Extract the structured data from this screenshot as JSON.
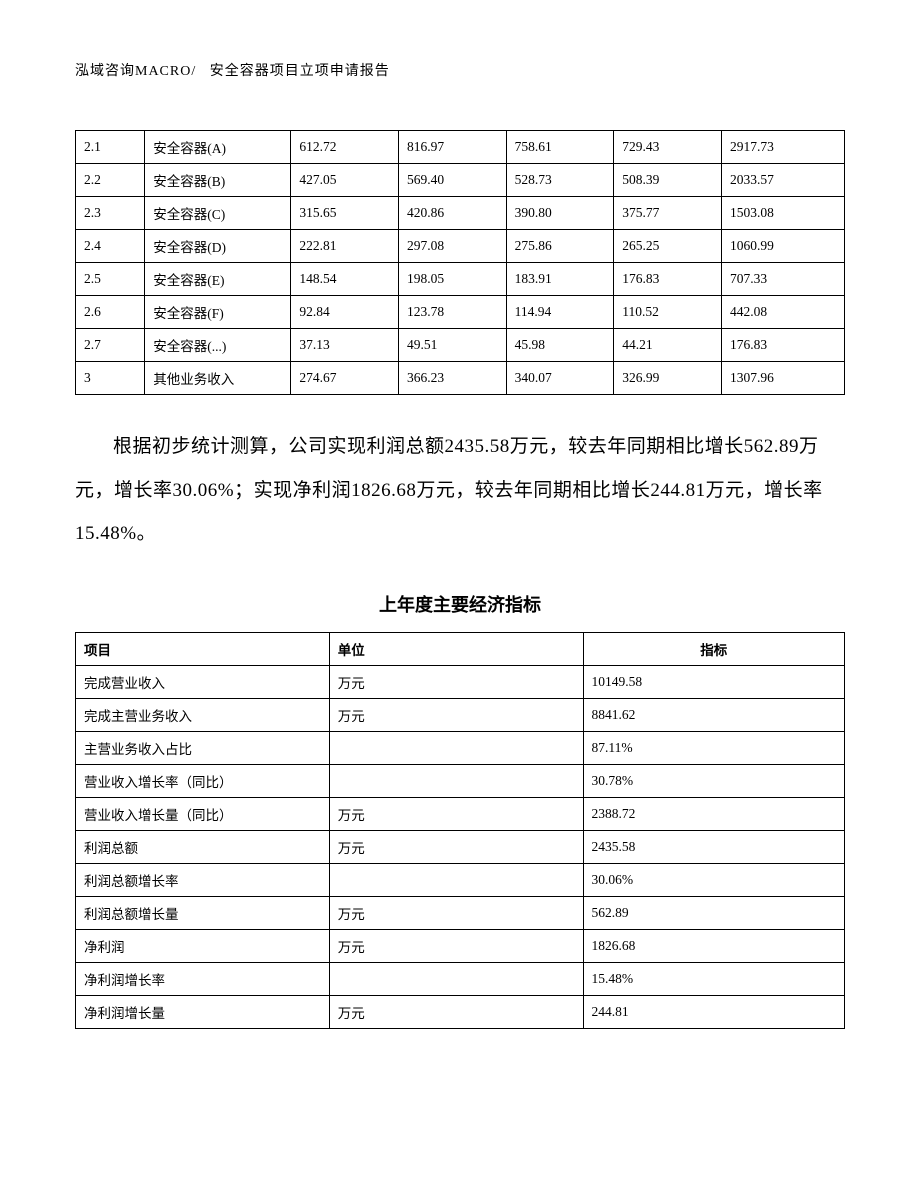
{
  "header": {
    "company": "泓域咨询MACRO/",
    "title": "安全容器项目立项申请报告"
  },
  "table1": {
    "rows": [
      [
        "2.1",
        "安全容器(A)",
        "612.72",
        "816.97",
        "758.61",
        "729.43",
        "2917.73"
      ],
      [
        "2.2",
        "安全容器(B)",
        "427.05",
        "569.40",
        "528.73",
        "508.39",
        "2033.57"
      ],
      [
        "2.3",
        "安全容器(C)",
        "315.65",
        "420.86",
        "390.80",
        "375.77",
        "1503.08"
      ],
      [
        "2.4",
        "安全容器(D)",
        "222.81",
        "297.08",
        "275.86",
        "265.25",
        "1060.99"
      ],
      [
        "2.5",
        "安全容器(E)",
        "148.54",
        "198.05",
        "183.91",
        "176.83",
        "707.33"
      ],
      [
        "2.6",
        "安全容器(F)",
        "92.84",
        "123.78",
        "114.94",
        "110.52",
        "442.08"
      ],
      [
        "2.7",
        "安全容器(...)",
        "37.13",
        "49.51",
        "45.98",
        "44.21",
        "176.83"
      ],
      [
        "3",
        "其他业务收入",
        "274.67",
        "366.23",
        "340.07",
        "326.99",
        "1307.96"
      ]
    ]
  },
  "paragraph": "根据初步统计测算，公司实现利润总额2435.58万元，较去年同期相比增长562.89万元，增长率30.06%；实现净利润1826.68万元，较去年同期相比增长244.81万元，增长率15.48%。",
  "table2_title": "上年度主要经济指标",
  "table2": {
    "headers": [
      "项目",
      "单位",
      "指标"
    ],
    "rows": [
      [
        "完成营业收入",
        "万元",
        "10149.58"
      ],
      [
        "完成主营业务收入",
        "万元",
        "8841.62"
      ],
      [
        "主营业务收入占比",
        "",
        "87.11%"
      ],
      [
        "营业收入增长率（同比）",
        "",
        "30.78%"
      ],
      [
        "营业收入增长量（同比）",
        "万元",
        "2388.72"
      ],
      [
        "利润总额",
        "万元",
        "2435.58"
      ],
      [
        "利润总额增长率",
        "",
        "30.06%"
      ],
      [
        "利润总额增长量",
        "万元",
        "562.89"
      ],
      [
        "净利润",
        "万元",
        "1826.68"
      ],
      [
        "净利润增长率",
        "",
        "15.48%"
      ],
      [
        "净利润增长量",
        "万元",
        "244.81"
      ]
    ]
  }
}
